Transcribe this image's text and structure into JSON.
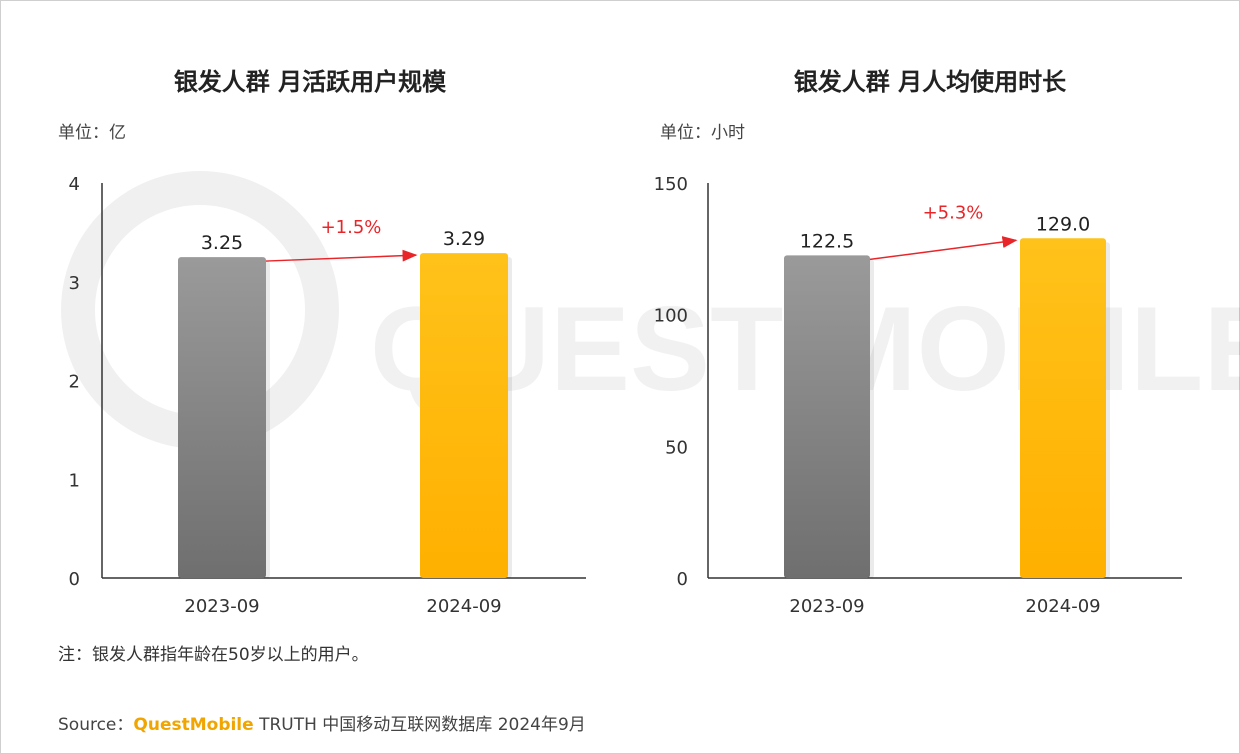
{
  "chart_data": [
    {
      "type": "bar",
      "title": "银发人群 月活跃用户规模",
      "unit": "单位：亿",
      "categories": [
        "2023-09",
        "2024-09"
      ],
      "values": [
        3.25,
        3.29
      ],
      "value_labels": [
        "3.25",
        "3.29"
      ],
      "ylim": [
        0,
        4
      ],
      "yticks": [
        "0",
        "1",
        "2",
        "3",
        "4"
      ],
      "growth_label": "+1.5%",
      "bar_colors": [
        "#808080",
        "#ffb400"
      ],
      "grid": false,
      "legend": "none"
    },
    {
      "type": "bar",
      "title": "银发人群 月人均使用时长",
      "unit": "单位：小时",
      "categories": [
        "2023-09",
        "2024-09"
      ],
      "values": [
        122.5,
        129.0
      ],
      "value_labels": [
        "122.5",
        "129.0"
      ],
      "ylim": [
        0,
        150
      ],
      "yticks": [
        "0",
        "50",
        "100",
        "150"
      ],
      "growth_label": "+5.3%",
      "bar_colors": [
        "#808080",
        "#ffb400"
      ],
      "grid": false,
      "legend": "none"
    }
  ],
  "note": "注：银发人群指年龄在50岁以上的用户。",
  "source": {
    "prefix": "Source：",
    "brand": "QuestMobile",
    "suffix": " TRUTH 中国移动互联网数据库 2024年9月"
  },
  "watermark_text": "QUEST MOBILE",
  "colors": {
    "growth_arrow": "#e8262a",
    "axis": "#333333"
  }
}
